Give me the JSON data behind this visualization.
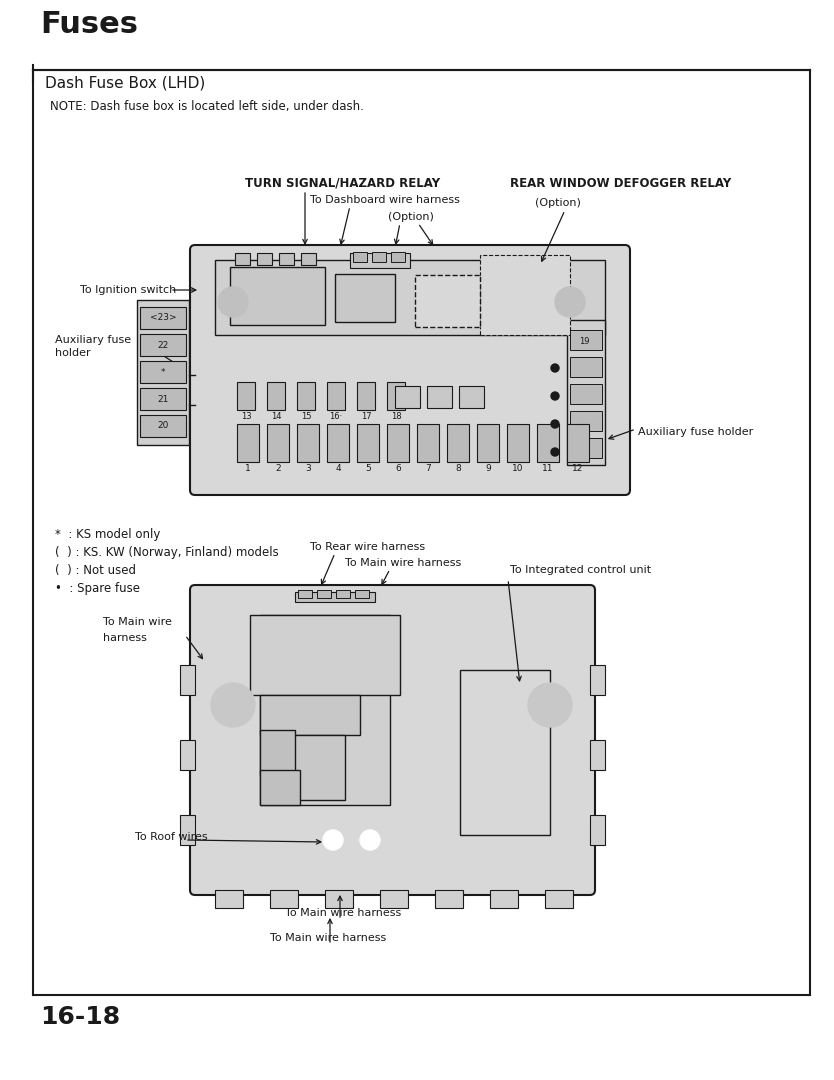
{
  "bg": "#ffffff",
  "title": "Fuses",
  "section": "Dash Fuse Box (LHD)",
  "note": "NOTE: Dash fuse box is located left side, under dash.",
  "page": "16-18",
  "legend": [
    "*  : KS model only",
    "(  ) : KS. KW (Norway, Finland) models",
    "(  ) : Not used",
    "•  : Spare fuse"
  ]
}
